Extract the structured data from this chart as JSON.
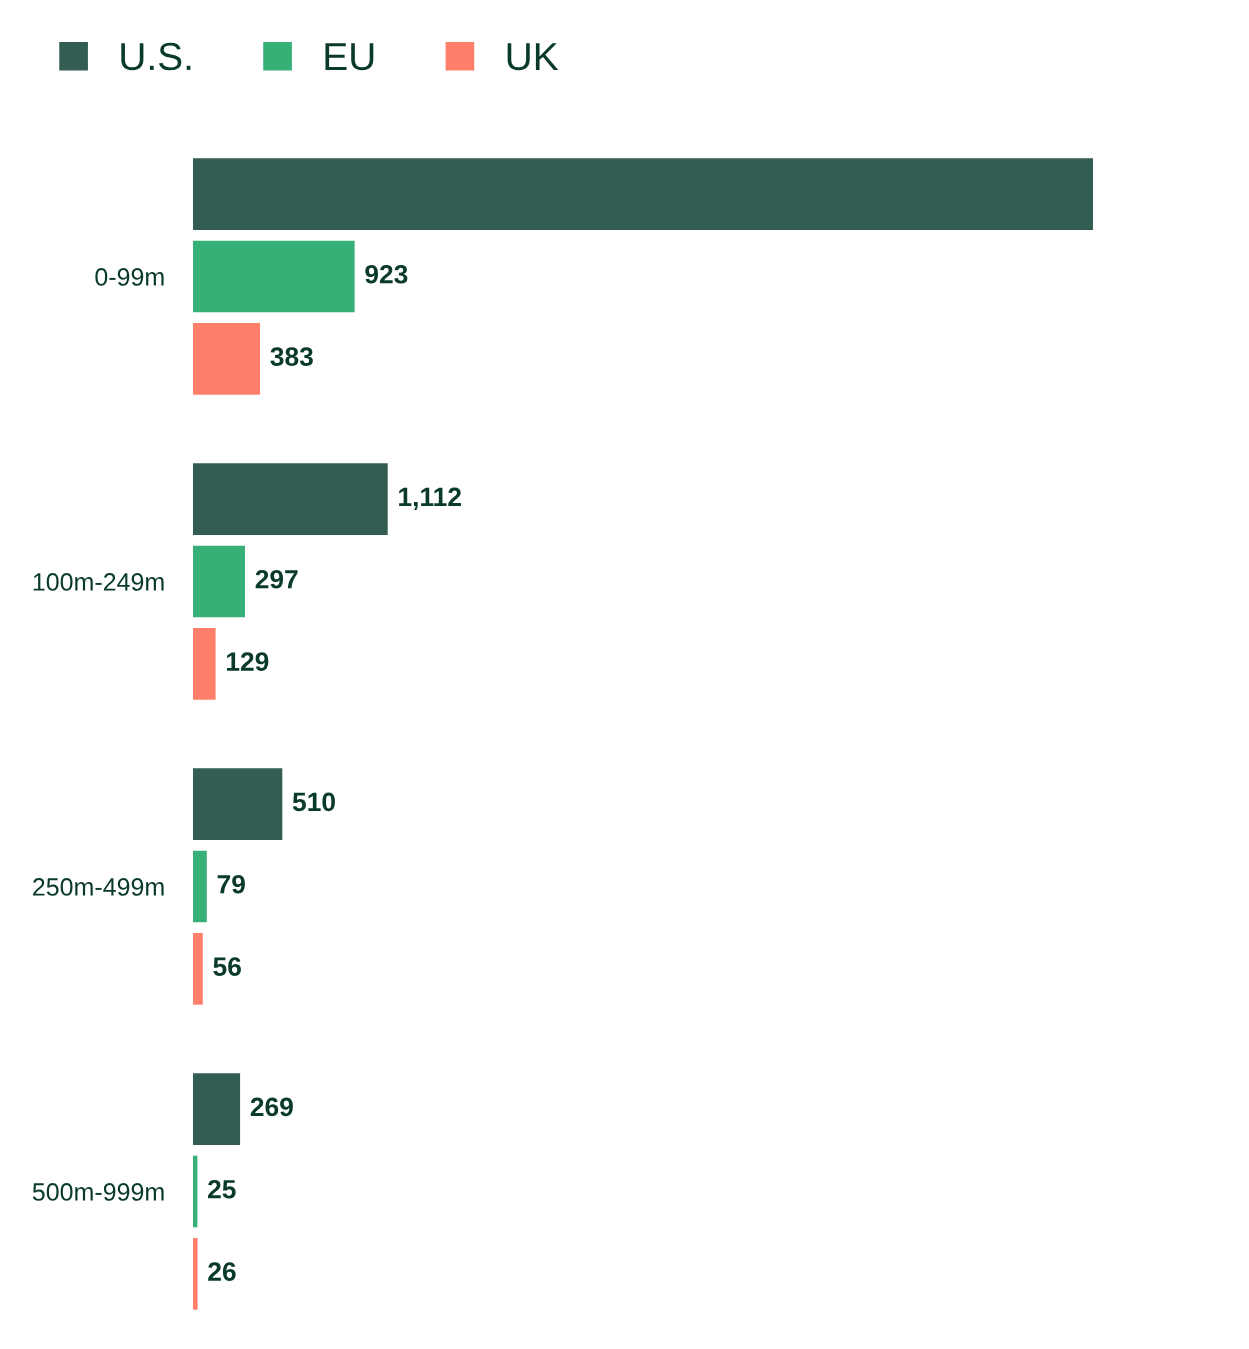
{
  "chart_data": {
    "type": "bar",
    "orientation": "horizontal",
    "categories": [
      "0-99m",
      "100m-249m",
      "250m-499m",
      "500m-999m"
    ],
    "series": [
      {
        "name": "U.S.",
        "color": "#335c53",
        "values": [
          5140,
          1112,
          510,
          269
        ],
        "value_labels": [
          null,
          "1,112",
          "510",
          "269"
        ]
      },
      {
        "name": "EU",
        "color": "#36b076",
        "values": [
          923,
          297,
          79,
          25
        ],
        "value_labels": [
          "923",
          "297",
          "79",
          "25"
        ]
      },
      {
        "name": "UK",
        "color": "#ff7f6a",
        "values": [
          383,
          129,
          56,
          26
        ],
        "value_labels": [
          "383",
          "129",
          "56",
          "26"
        ]
      }
    ],
    "legend": "top left",
    "grid": false
  }
}
